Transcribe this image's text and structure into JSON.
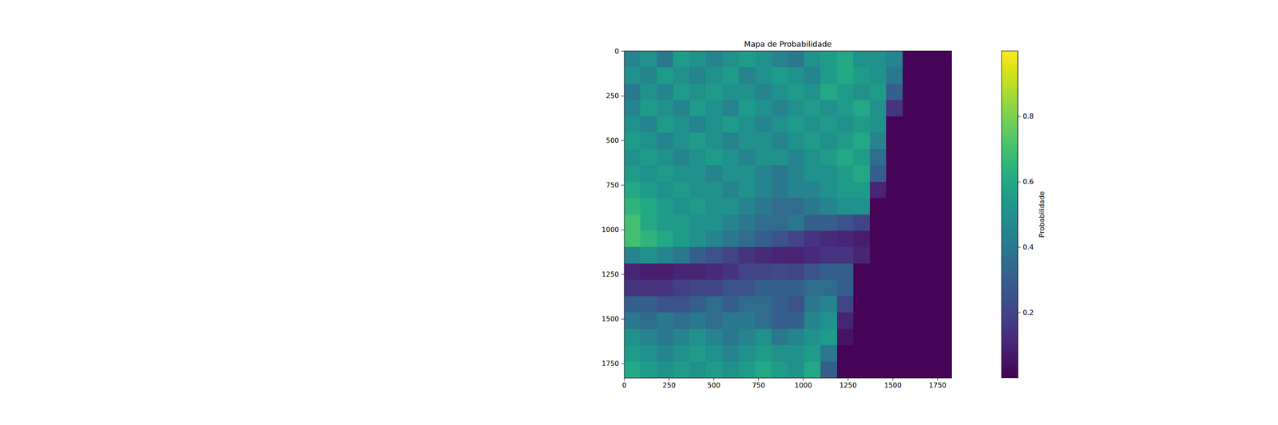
{
  "chart_data": {
    "type": "heatmap",
    "title": "Mapa de Probabilidade",
    "xlim": [
      0,
      1830
    ],
    "ylim": [
      1830,
      0
    ],
    "xticks": [
      0,
      250,
      500,
      750,
      1000,
      1250,
      1500,
      1750
    ],
    "yticks": [
      0,
      250,
      500,
      750,
      1000,
      1250,
      1500,
      1750
    ],
    "cells": [
      [
        0.45,
        0.5,
        0.4,
        0.55,
        0.5,
        0.45,
        0.5,
        0.55,
        0.5,
        0.45,
        0.4,
        0.5,
        0.55,
        0.6,
        0.5,
        0.5,
        0.45,
        0.01,
        0.01,
        0.01
      ],
      [
        0.5,
        0.45,
        0.55,
        0.5,
        0.45,
        0.5,
        0.55,
        0.45,
        0.5,
        0.55,
        0.5,
        0.45,
        0.55,
        0.6,
        0.55,
        0.5,
        0.4,
        0.01,
        0.01,
        0.01
      ],
      [
        0.4,
        0.5,
        0.45,
        0.55,
        0.5,
        0.55,
        0.5,
        0.5,
        0.45,
        0.5,
        0.55,
        0.5,
        0.6,
        0.55,
        0.5,
        0.55,
        0.3,
        0.01,
        0.01,
        0.01
      ],
      [
        0.45,
        0.55,
        0.5,
        0.45,
        0.55,
        0.5,
        0.45,
        0.55,
        0.5,
        0.45,
        0.5,
        0.55,
        0.5,
        0.55,
        0.6,
        0.5,
        0.15,
        0.01,
        0.01,
        0.01
      ],
      [
        0.5,
        0.45,
        0.55,
        0.5,
        0.45,
        0.5,
        0.55,
        0.5,
        0.45,
        0.5,
        0.55,
        0.5,
        0.55,
        0.5,
        0.55,
        0.5,
        0.01,
        0.01,
        0.01,
        0.01
      ],
      [
        0.55,
        0.5,
        0.45,
        0.5,
        0.55,
        0.5,
        0.45,
        0.5,
        0.5,
        0.45,
        0.5,
        0.55,
        0.5,
        0.55,
        0.6,
        0.45,
        0.01,
        0.01,
        0.01,
        0.01
      ],
      [
        0.5,
        0.55,
        0.5,
        0.45,
        0.5,
        0.55,
        0.5,
        0.45,
        0.5,
        0.5,
        0.45,
        0.5,
        0.55,
        0.6,
        0.55,
        0.35,
        0.01,
        0.01,
        0.01,
        0.01
      ],
      [
        0.55,
        0.5,
        0.55,
        0.5,
        0.5,
        0.45,
        0.5,
        0.5,
        0.45,
        0.4,
        0.45,
        0.5,
        0.5,
        0.55,
        0.6,
        0.3,
        0.01,
        0.01,
        0.01,
        0.01
      ],
      [
        0.6,
        0.55,
        0.5,
        0.55,
        0.5,
        0.5,
        0.45,
        0.5,
        0.45,
        0.4,
        0.45,
        0.45,
        0.5,
        0.55,
        0.55,
        0.1,
        0.01,
        0.01,
        0.01,
        0.01
      ],
      [
        0.65,
        0.6,
        0.55,
        0.5,
        0.55,
        0.5,
        0.5,
        0.45,
        0.4,
        0.35,
        0.35,
        0.4,
        0.45,
        0.5,
        0.5,
        0.01,
        0.01,
        0.01,
        0.01,
        0.01
      ],
      [
        0.7,
        0.6,
        0.55,
        0.55,
        0.5,
        0.5,
        0.45,
        0.4,
        0.35,
        0.35,
        0.4,
        0.3,
        0.3,
        0.25,
        0.2,
        0.01,
        0.01,
        0.01,
        0.01,
        0.01
      ],
      [
        0.7,
        0.65,
        0.6,
        0.55,
        0.5,
        0.45,
        0.4,
        0.35,
        0.3,
        0.25,
        0.2,
        0.15,
        0.12,
        0.1,
        0.08,
        0.01,
        0.01,
        0.01,
        0.01,
        0.01
      ],
      [
        0.45,
        0.5,
        0.45,
        0.4,
        0.3,
        0.25,
        0.2,
        0.15,
        0.12,
        0.1,
        0.1,
        0.12,
        0.15,
        0.15,
        0.1,
        0.01,
        0.01,
        0.01,
        0.01,
        0.01
      ],
      [
        0.1,
        0.08,
        0.08,
        0.1,
        0.1,
        0.12,
        0.15,
        0.2,
        0.2,
        0.22,
        0.2,
        0.25,
        0.3,
        0.3,
        0.01,
        0.01,
        0.01,
        0.01,
        0.01,
        0.01
      ],
      [
        0.15,
        0.15,
        0.15,
        0.18,
        0.2,
        0.2,
        0.25,
        0.25,
        0.3,
        0.3,
        0.3,
        0.35,
        0.35,
        0.3,
        0.01,
        0.01,
        0.01,
        0.01,
        0.01,
        0.01
      ],
      [
        0.3,
        0.3,
        0.25,
        0.25,
        0.3,
        0.35,
        0.3,
        0.35,
        0.35,
        0.3,
        0.25,
        0.4,
        0.45,
        0.2,
        0.01,
        0.01,
        0.01,
        0.01,
        0.01,
        0.01
      ],
      [
        0.4,
        0.35,
        0.4,
        0.35,
        0.4,
        0.35,
        0.4,
        0.4,
        0.35,
        0.3,
        0.3,
        0.45,
        0.5,
        0.1,
        0.01,
        0.01,
        0.01,
        0.01,
        0.01,
        0.01
      ],
      [
        0.5,
        0.45,
        0.4,
        0.45,
        0.5,
        0.45,
        0.4,
        0.45,
        0.5,
        0.4,
        0.45,
        0.5,
        0.55,
        0.05,
        0.01,
        0.01,
        0.01,
        0.01,
        0.01,
        0.01
      ],
      [
        0.55,
        0.5,
        0.45,
        0.5,
        0.55,
        0.5,
        0.45,
        0.5,
        0.55,
        0.5,
        0.5,
        0.55,
        0.4,
        0.01,
        0.01,
        0.01,
        0.01,
        0.01,
        0.01,
        0.01
      ],
      [
        0.6,
        0.55,
        0.5,
        0.55,
        0.5,
        0.55,
        0.5,
        0.55,
        0.6,
        0.55,
        0.5,
        0.6,
        0.3,
        0.01,
        0.01,
        0.01,
        0.01,
        0.01,
        0.01,
        0.01
      ]
    ],
    "zlim": [
      0,
      1
    ],
    "zticks": [
      0.2,
      0.4,
      0.6,
      0.8
    ],
    "colorbar_label": "Probabilidade"
  }
}
